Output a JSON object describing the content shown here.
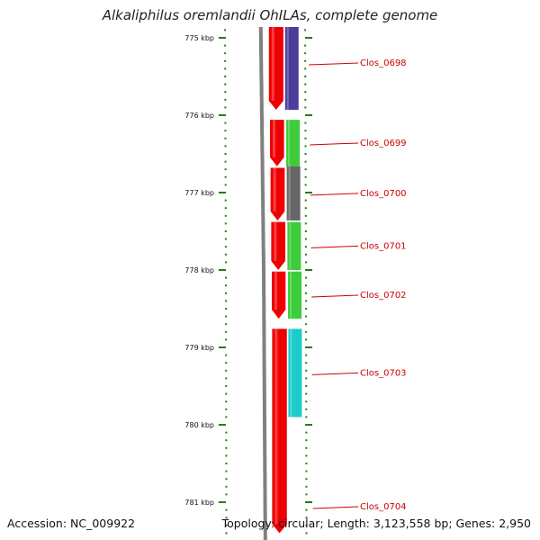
{
  "title": "Alkaliphilus oremlandii OhILAs, complete genome",
  "footer": {
    "accession": "Accession: NC_009922",
    "info": "Topology: circular; Length: 3,123,558 bp; Genes: 2,950"
  },
  "scale": {
    "unit": "kbp",
    "start_kbp": 774.8,
    "end_kbp": 781.4,
    "major_ticks": [
      {
        "kbp": 775,
        "label": "775 kbp"
      },
      {
        "kbp": 776,
        "label": "776 kbp"
      },
      {
        "kbp": 777,
        "label": "777 kbp"
      },
      {
        "kbp": 778,
        "label": "778 kbp"
      },
      {
        "kbp": 779,
        "label": "779 kbp"
      },
      {
        "kbp": 780,
        "label": "780 kbp"
      },
      {
        "kbp": 781,
        "label": "781 kbp"
      }
    ],
    "minor_tick_step_kbp": 0.1,
    "tick_color": "#2a7a1a"
  },
  "colors": {
    "backbone": "#808080",
    "forward_strand": "#ee0000",
    "label_text": "#cc0000",
    "leader_line": "#cc0000"
  },
  "genes": [
    {
      "name": "Clos_0698",
      "start_kbp": 774.8,
      "end_kbp": 775.93,
      "color": "#4b3d9a"
    },
    {
      "name": "Clos_0699",
      "start_kbp": 776.06,
      "end_kbp": 776.66,
      "color": "#3ccc3c"
    },
    {
      "name": "Clos_0700",
      "start_kbp": 776.66,
      "end_kbp": 777.36,
      "color": "#666666"
    },
    {
      "name": "Clos_0701",
      "start_kbp": 777.38,
      "end_kbp": 778.0,
      "color": "#3ccc3c"
    },
    {
      "name": "Clos_0702",
      "start_kbp": 778.02,
      "end_kbp": 778.63,
      "color": "#3ccc3c"
    },
    {
      "name": "Clos_0703",
      "start_kbp": 778.76,
      "end_kbp": 779.9,
      "color": "#1ccccc"
    },
    {
      "name": "Clos_0704",
      "start_kbp": 780.95,
      "end_kbp": 781.4,
      "color": null
    }
  ],
  "forward_blocks": [
    {
      "start_kbp": 774.8,
      "end_kbp": 775.93
    },
    {
      "start_kbp": 776.06,
      "end_kbp": 776.66
    },
    {
      "start_kbp": 776.68,
      "end_kbp": 777.36
    },
    {
      "start_kbp": 777.38,
      "end_kbp": 778.0
    },
    {
      "start_kbp": 778.02,
      "end_kbp": 778.63
    },
    {
      "start_kbp": 778.76,
      "end_kbp": 781.4
    }
  ]
}
